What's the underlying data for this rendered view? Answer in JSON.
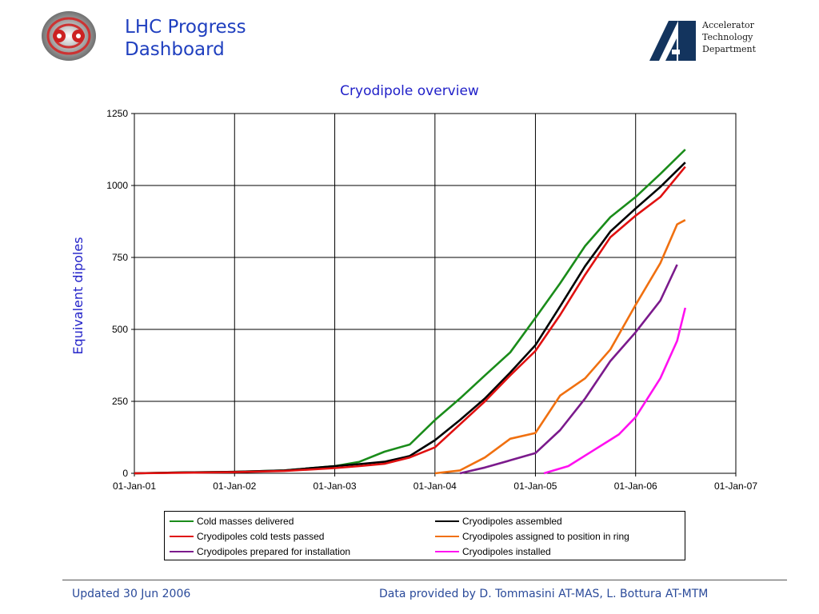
{
  "header": {
    "title_line1": "LHC Progress",
    "title_line2": "Dashboard",
    "dept_line1": "Accelerator",
    "dept_line2": "Technology",
    "dept_line3": "Department"
  },
  "footer": {
    "updated": "Updated 30 Jun 2006",
    "credits": "Data provided by  D. Tommasini  AT-MAS, L. Bottura AT-MTM"
  },
  "chart_data": {
    "type": "line",
    "title": "Cryodipole overview",
    "xlabel": "",
    "ylabel": "Equivalent dipoles",
    "ylim": [
      0,
      1250
    ],
    "yticks": [
      0,
      250,
      500,
      750,
      1000,
      1250
    ],
    "xlim": [
      "2001-01-01",
      "2007-01-01"
    ],
    "xtick_labels": [
      "01-Jan-01",
      "01-Jan-02",
      "01-Jan-03",
      "01-Jan-04",
      "01-Jan-05",
      "01-Jan-06",
      "01-Jan-07"
    ],
    "xtick_dates": [
      "2001-01-01",
      "2002-01-01",
      "2003-01-01",
      "2004-01-01",
      "2005-01-01",
      "2006-01-01",
      "2007-01-01"
    ],
    "grid": true,
    "legend_position": "bottom",
    "series": [
      {
        "name": "Cold masses delivered",
        "color": "#1a8c1a",
        "points": [
          [
            "2001-01-01",
            0
          ],
          [
            "2001-07-01",
            3
          ],
          [
            "2002-01-01",
            5
          ],
          [
            "2002-07-01",
            10
          ],
          [
            "2003-01-01",
            25
          ],
          [
            "2003-04-01",
            40
          ],
          [
            "2003-07-01",
            75
          ],
          [
            "2003-10-01",
            100
          ],
          [
            "2004-01-01",
            185
          ],
          [
            "2004-04-01",
            260
          ],
          [
            "2004-07-01",
            340
          ],
          [
            "2004-10-01",
            420
          ],
          [
            "2005-01-01",
            540
          ],
          [
            "2005-04-01",
            660
          ],
          [
            "2005-07-01",
            790
          ],
          [
            "2005-10-01",
            890
          ],
          [
            "2006-01-01",
            960
          ],
          [
            "2006-04-01",
            1040
          ],
          [
            "2006-07-01",
            1125
          ]
        ]
      },
      {
        "name": "Cryodipoles assembled",
        "color": "#000000",
        "points": [
          [
            "2001-01-01",
            0
          ],
          [
            "2001-07-01",
            3
          ],
          [
            "2002-01-01",
            5
          ],
          [
            "2002-07-01",
            10
          ],
          [
            "2003-01-01",
            25
          ],
          [
            "2003-04-01",
            32
          ],
          [
            "2003-07-01",
            40
          ],
          [
            "2003-10-01",
            60
          ],
          [
            "2004-01-01",
            115
          ],
          [
            "2004-04-01",
            185
          ],
          [
            "2004-07-01",
            260
          ],
          [
            "2004-10-01",
            350
          ],
          [
            "2005-01-01",
            445
          ],
          [
            "2005-04-01",
            580
          ],
          [
            "2005-07-01",
            720
          ],
          [
            "2005-10-01",
            840
          ],
          [
            "2006-01-01",
            920
          ],
          [
            "2006-04-01",
            995
          ],
          [
            "2006-07-01",
            1080
          ]
        ]
      },
      {
        "name": "Cryodipoles cold tests passed",
        "color": "#e01010",
        "points": [
          [
            "2001-01-01",
            0
          ],
          [
            "2001-07-01",
            2
          ],
          [
            "2002-01-01",
            4
          ],
          [
            "2002-07-01",
            8
          ],
          [
            "2003-01-01",
            18
          ],
          [
            "2003-04-01",
            25
          ],
          [
            "2003-07-01",
            33
          ],
          [
            "2003-10-01",
            55
          ],
          [
            "2004-01-01",
            90
          ],
          [
            "2004-04-01",
            170
          ],
          [
            "2004-07-01",
            250
          ],
          [
            "2004-10-01",
            340
          ],
          [
            "2005-01-01",
            425
          ],
          [
            "2005-04-01",
            550
          ],
          [
            "2005-07-01",
            690
          ],
          [
            "2005-10-01",
            820
          ],
          [
            "2006-01-01",
            895
          ],
          [
            "2006-04-01",
            960
          ],
          [
            "2006-07-01",
            1065
          ]
        ]
      },
      {
        "name": "Cryodipoles assigned to position in ring",
        "color": "#f07010",
        "points": [
          [
            "2004-01-01",
            0
          ],
          [
            "2004-04-01",
            10
          ],
          [
            "2004-07-01",
            55
          ],
          [
            "2004-10-01",
            120
          ],
          [
            "2005-01-01",
            140
          ],
          [
            "2005-04-01",
            270
          ],
          [
            "2005-07-01",
            330
          ],
          [
            "2005-10-01",
            430
          ],
          [
            "2006-01-01",
            585
          ],
          [
            "2006-04-01",
            730
          ],
          [
            "2006-06-01",
            865
          ],
          [
            "2006-07-01",
            880
          ]
        ]
      },
      {
        "name": "Cryodipoles prepared for installation",
        "color": "#7b1a8c",
        "points": [
          [
            "2004-04-01",
            0
          ],
          [
            "2004-07-01",
            20
          ],
          [
            "2004-10-01",
            45
          ],
          [
            "2005-01-01",
            70
          ],
          [
            "2005-04-01",
            150
          ],
          [
            "2005-07-01",
            260
          ],
          [
            "2005-10-01",
            390
          ],
          [
            "2006-01-01",
            490
          ],
          [
            "2006-04-01",
            600
          ],
          [
            "2006-06-01",
            725
          ]
        ]
      },
      {
        "name": "Cryodipoles installed",
        "color": "#ff10f0",
        "points": [
          [
            "2005-02-01",
            0
          ],
          [
            "2005-05-01",
            25
          ],
          [
            "2005-08-01",
            80
          ],
          [
            "2005-11-01",
            135
          ],
          [
            "2006-01-01",
            195
          ],
          [
            "2006-04-01",
            330
          ],
          [
            "2006-06-01",
            460
          ],
          [
            "2006-07-01",
            575
          ]
        ]
      }
    ]
  }
}
